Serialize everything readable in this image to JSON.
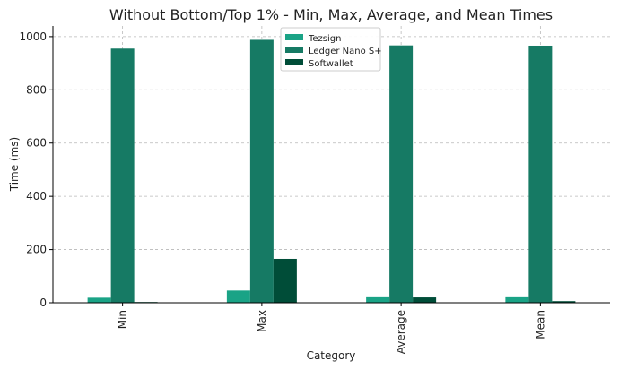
{
  "chart_data": {
    "type": "bar",
    "title": "Without Bottom/Top 1% - Min, Max, Average, and Mean Times",
    "xlabel": "Category",
    "ylabel": "Time (ms)",
    "categories": [
      "Min",
      "Max",
      "Average",
      "Mean"
    ],
    "series": [
      {
        "name": "Tezsign",
        "color": "#1aa386",
        "values": [
          19,
          46,
          24,
          24
        ]
      },
      {
        "name": "Ledger Nano S+",
        "color": "#167a64",
        "values": [
          955,
          988,
          967,
          966
        ]
      },
      {
        "name": "Softwallet",
        "color": "#004d38",
        "values": [
          2,
          165,
          20,
          6
        ]
      }
    ],
    "ylim": [
      0,
      1040
    ],
    "yticks": [
      0,
      200,
      400,
      600,
      800,
      1000
    ],
    "grid": true,
    "legend_position": "top-center"
  }
}
